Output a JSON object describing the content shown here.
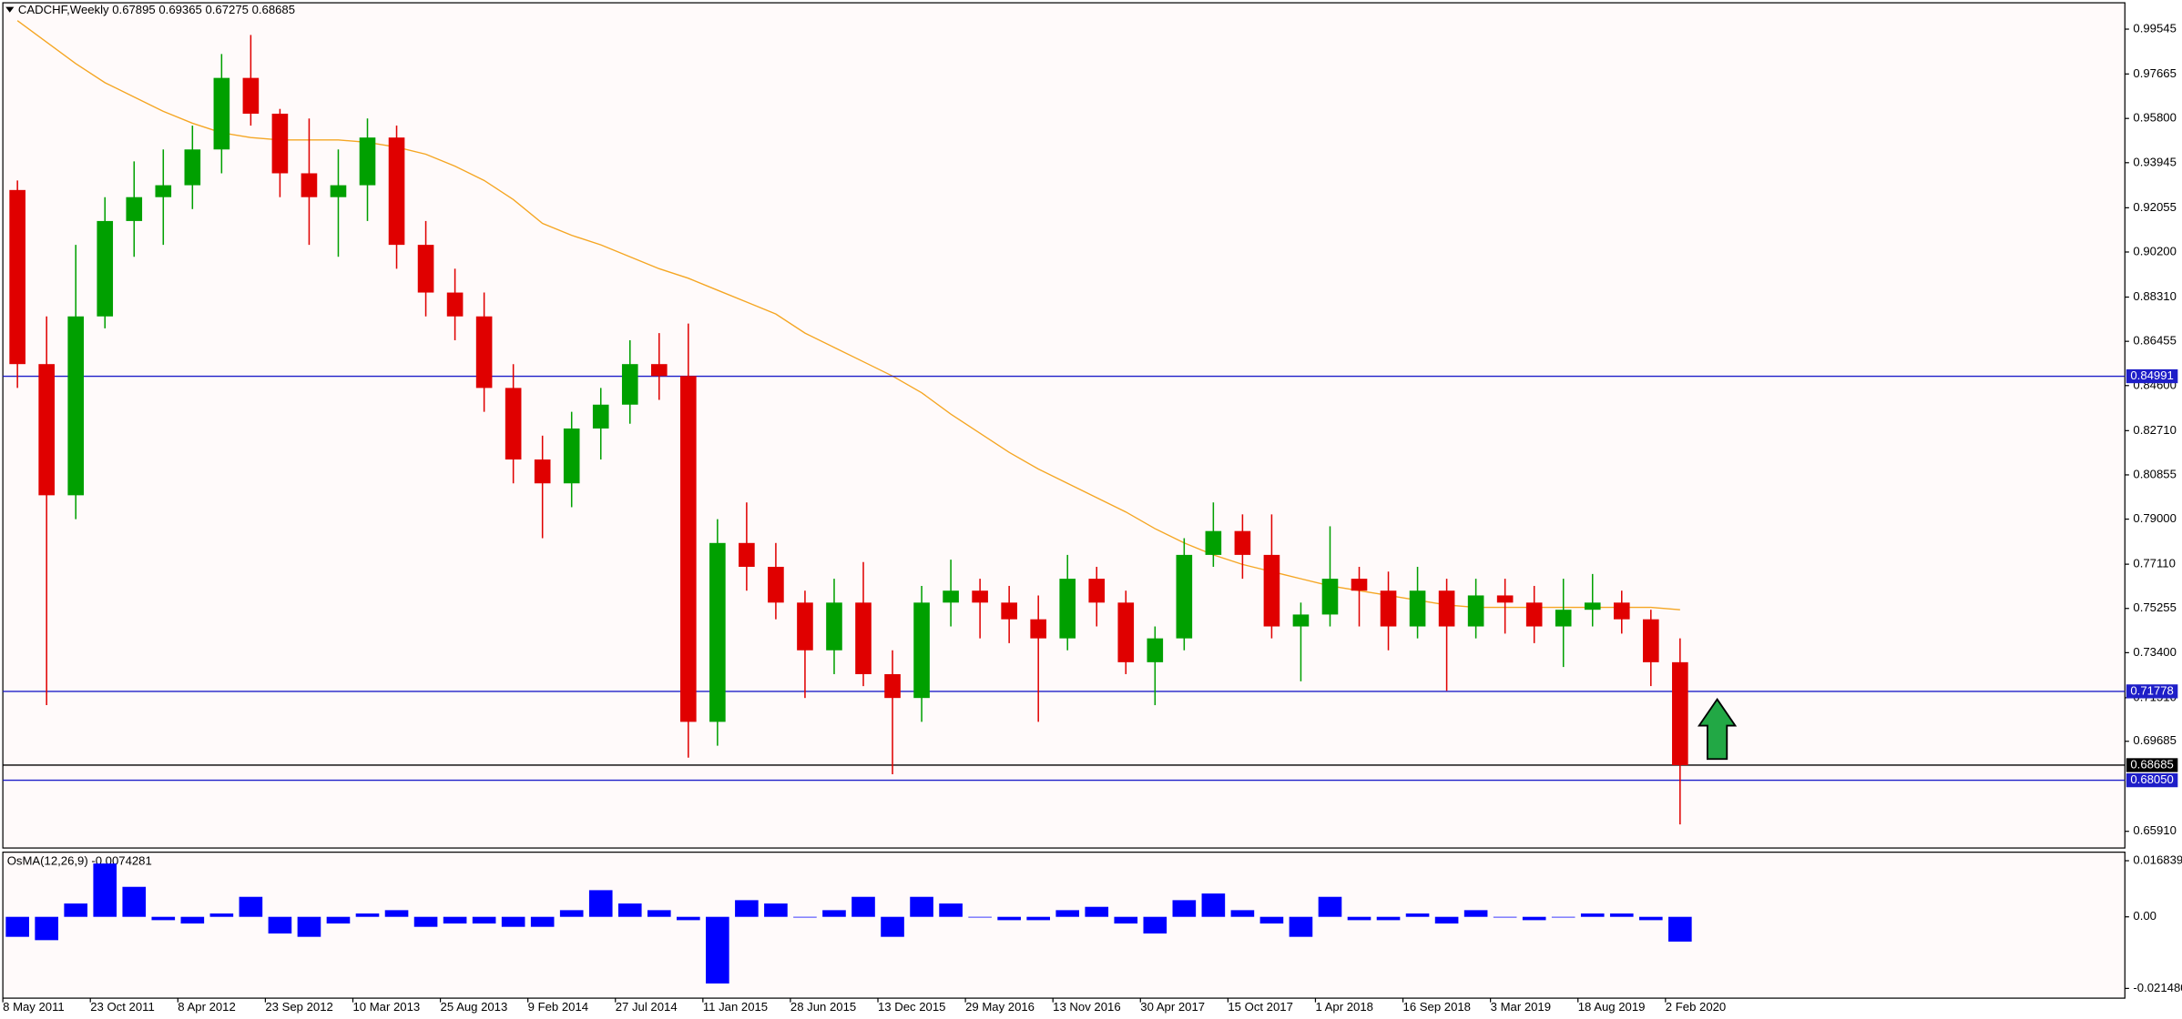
{
  "chart_data": {
    "type": "candlestick",
    "title": "CADCHF,Weekly",
    "header_values": [
      0.67895,
      0.69365,
      0.67275,
      0.68685
    ],
    "up_color": "#00a000",
    "down_color": "#e00000",
    "x": [
      0,
      8,
      16,
      24,
      32,
      40,
      48,
      56,
      64,
      72,
      80,
      88,
      96,
      104,
      112,
      120,
      128,
      136,
      144,
      152,
      160,
      168,
      176,
      184,
      192,
      200,
      208,
      216,
      224,
      232,
      240,
      248,
      256,
      264,
      272,
      280,
      288,
      296,
      304,
      312,
      320,
      328,
      336,
      344,
      352,
      360,
      368,
      376,
      384,
      392,
      400,
      408,
      416,
      424,
      432,
      440,
      448,
      456
    ],
    "open": [
      0.928,
      0.855,
      0.8,
      0.875,
      0.915,
      0.925,
      0.93,
      0.945,
      0.975,
      0.96,
      0.935,
      0.925,
      0.93,
      0.95,
      0.905,
      0.885,
      0.875,
      0.845,
      0.815,
      0.805,
      0.828,
      0.838,
      0.855,
      0.85,
      0.705,
      0.78,
      0.77,
      0.755,
      0.735,
      0.755,
      0.725,
      0.715,
      0.755,
      0.76,
      0.755,
      0.748,
      0.74,
      0.765,
      0.755,
      0.73,
      0.74,
      0.775,
      0.785,
      0.775,
      0.745,
      0.75,
      0.765,
      0.76,
      0.745,
      0.76,
      0.745,
      0.758,
      0.755,
      0.745,
      0.752,
      0.755,
      0.748,
      0.73
    ],
    "high": [
      0.932,
      0.875,
      0.905,
      0.925,
      0.94,
      0.945,
      0.955,
      0.985,
      0.993,
      0.962,
      0.958,
      0.945,
      0.958,
      0.955,
      0.915,
      0.895,
      0.885,
      0.855,
      0.825,
      0.835,
      0.845,
      0.865,
      0.868,
      0.872,
      0.79,
      0.797,
      0.78,
      0.76,
      0.765,
      0.772,
      0.735,
      0.762,
      0.773,
      0.765,
      0.762,
      0.758,
      0.775,
      0.77,
      0.76,
      0.745,
      0.782,
      0.797,
      0.792,
      0.792,
      0.755,
      0.787,
      0.77,
      0.768,
      0.77,
      0.765,
      0.765,
      0.765,
      0.762,
      0.765,
      0.767,
      0.76,
      0.752,
      0.74
    ],
    "low": [
      0.845,
      0.712,
      0.79,
      0.87,
      0.9,
      0.905,
      0.92,
      0.935,
      0.955,
      0.925,
      0.905,
      0.9,
      0.915,
      0.895,
      0.875,
      0.865,
      0.835,
      0.805,
      0.782,
      0.795,
      0.815,
      0.83,
      0.84,
      0.69,
      0.695,
      0.76,
      0.748,
      0.715,
      0.725,
      0.72,
      0.683,
      0.705,
      0.745,
      0.74,
      0.738,
      0.705,
      0.735,
      0.745,
      0.725,
      0.712,
      0.735,
      0.77,
      0.765,
      0.74,
      0.722,
      0.745,
      0.745,
      0.735,
      0.74,
      0.718,
      0.74,
      0.742,
      0.738,
      0.728,
      0.745,
      0.742,
      0.72,
      0.662
    ],
    "close": [
      0.855,
      0.8,
      0.875,
      0.915,
      0.925,
      0.93,
      0.945,
      0.975,
      0.96,
      0.935,
      0.925,
      0.93,
      0.95,
      0.905,
      0.885,
      0.875,
      0.845,
      0.815,
      0.805,
      0.828,
      0.838,
      0.855,
      0.85,
      0.705,
      0.78,
      0.77,
      0.755,
      0.735,
      0.755,
      0.725,
      0.715,
      0.755,
      0.76,
      0.755,
      0.748,
      0.74,
      0.765,
      0.755,
      0.73,
      0.74,
      0.775,
      0.785,
      0.775,
      0.745,
      0.75,
      0.765,
      0.76,
      0.745,
      0.76,
      0.745,
      0.758,
      0.755,
      0.745,
      0.752,
      0.755,
      0.748,
      0.73,
      0.68685
    ],
    "ma": {
      "color": "#f5a623",
      "values": [
        0.999,
        0.99,
        0.981,
        0.973,
        0.967,
        0.961,
        0.956,
        0.952,
        0.95,
        0.949,
        0.949,
        0.949,
        0.948,
        0.946,
        0.943,
        0.938,
        0.932,
        0.924,
        0.914,
        0.909,
        0.905,
        0.9,
        0.895,
        0.891,
        0.886,
        0.881,
        0.876,
        0.868,
        0.862,
        0.856,
        0.85,
        0.843,
        0.834,
        0.826,
        0.818,
        0.811,
        0.805,
        0.799,
        0.793,
        0.786,
        0.78,
        0.775,
        0.771,
        0.768,
        0.765,
        0.762,
        0.76,
        0.758,
        0.756,
        0.754,
        0.753,
        0.753,
        0.753,
        0.753,
        0.753,
        0.753,
        0.753,
        0.752
      ]
    },
    "levels": [
      {
        "value": 0.84991,
        "color": "#1e1ec8"
      },
      {
        "value": 0.71778,
        "color": "#1e1ec8"
      },
      {
        "value": 0.68685,
        "color": "#000000"
      },
      {
        "value": 0.6805,
        "label": "0.68050",
        "color": "#1e1ec8"
      }
    ],
    "xlim": [
      0,
      582
    ],
    "xticks": [
      {
        "value": 0,
        "label": "8 May 2011"
      },
      {
        "value": 24,
        "label": "23 Oct 2011"
      },
      {
        "value": 48,
        "label": "8 Apr 2012"
      },
      {
        "value": 72,
        "label": "23 Sep 2012"
      },
      {
        "value": 96,
        "label": "10 Mar 2013"
      },
      {
        "value": 120,
        "label": "25 Aug 2013"
      },
      {
        "value": 144,
        "label": "9 Feb 2014"
      },
      {
        "value": 168,
        "label": "27 Jul 2014"
      },
      {
        "value": 192,
        "label": "11 Jan 2015"
      },
      {
        "value": 216,
        "label": "28 Jun 2015"
      },
      {
        "value": 240,
        "label": "13 Dec 2015"
      },
      {
        "value": 264,
        "label": "29 May 2016"
      },
      {
        "value": 288,
        "label": "13 Nov 2016"
      },
      {
        "value": 312,
        "label": "30 Apr 2017"
      },
      {
        "value": 336,
        "label": "15 Oct 2017"
      },
      {
        "value": 360,
        "label": "1 Apr 2018"
      },
      {
        "value": 384,
        "label": "16 Sep 2018"
      },
      {
        "value": 408,
        "label": "3 Mar 2019"
      },
      {
        "value": 432,
        "label": "18 Aug 2019"
      },
      {
        "value": 456,
        "label": "2 Feb 2020"
      }
    ],
    "ylim": [
      0.6521,
      1.0065
    ],
    "yticks": [
      0.99545,
      0.97665,
      {
        "value": 0.958,
        "label": "0.95800"
      },
      0.93945,
      0.92055,
      {
        "value": 0.902,
        "label": "0.90200"
      },
      {
        "value": 0.8831,
        "label": "0.88310"
      },
      0.86455,
      {
        "value": 0.846,
        "label": "0.84600"
      },
      {
        "value": 0.8271,
        "label": "0.82710"
      },
      0.80855,
      {
        "value": 0.79,
        "label": "0.79000"
      },
      {
        "value": 0.7711,
        "label": "0.77110"
      },
      0.75255,
      {
        "value": 0.734,
        "label": "0.73400"
      },
      {
        "value": 0.7151,
        "label": "0.71510"
      },
      0.69685,
      {
        "value": 0.6591,
        "label": "0.65910"
      }
    ],
    "osma": {
      "label": "OsMA(12,26,9)",
      "current": -0.0074281,
      "color": "#0000ff",
      "values": [
        -0.006,
        -0.007,
        0.004,
        0.016,
        0.009,
        -0.001,
        -0.002,
        0.001,
        0.006,
        -0.005,
        -0.006,
        -0.002,
        0.001,
        0.002,
        -0.003,
        -0.002,
        -0.002,
        -0.003,
        -0.003,
        0.002,
        0.008,
        0.004,
        0.002,
        -0.001,
        -0.02,
        0.005,
        0.004,
        0.0,
        0.002,
        0.006,
        -0.006,
        0.006,
        0.004,
        0.0,
        -0.001,
        -0.001,
        0.002,
        0.003,
        -0.002,
        -0.005,
        0.005,
        0.007,
        0.002,
        -0.002,
        -0.006,
        0.006,
        -0.001,
        -0.001,
        0.001,
        -0.002,
        0.002,
        0.0,
        -0.001,
        0.0,
        0.001,
        0.001,
        -0.001,
        -0.0074281
      ],
      "ylim": [
        -0.0244,
        0.0194
      ],
      "yticks": [
        0.0168394,
        {
          "value": 0,
          "label": "0.00"
        },
        -0.0214803
      ]
    }
  }
}
